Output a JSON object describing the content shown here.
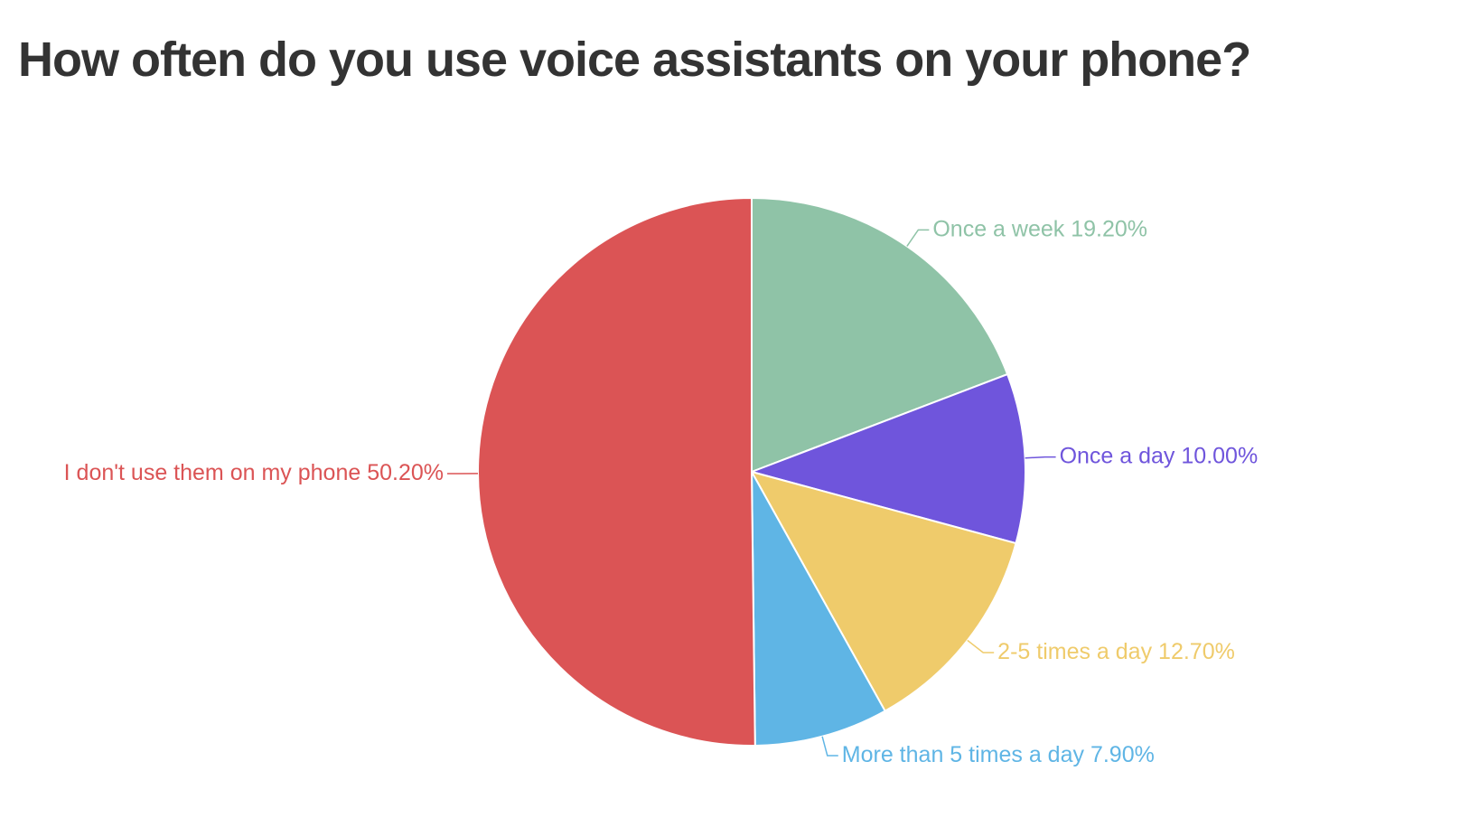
{
  "chart_data": {
    "type": "pie",
    "title": "How often do you use voice assistants on your phone?",
    "categories": [
      "Once a week",
      "Once a day",
      "2-5 times a day",
      "More than 5 times a day",
      "I don't use them on my phone"
    ],
    "values": [
      19.2,
      10.0,
      12.7,
      7.9,
      50.2
    ],
    "value_labels": [
      "19.20%",
      "10.00%",
      "12.70%",
      "7.90%",
      "50.20%"
    ],
    "colors": [
      "#8fc3a7",
      "#6f55dc",
      "#efcb6b",
      "#5fb5e5",
      "#db5455"
    ]
  }
}
